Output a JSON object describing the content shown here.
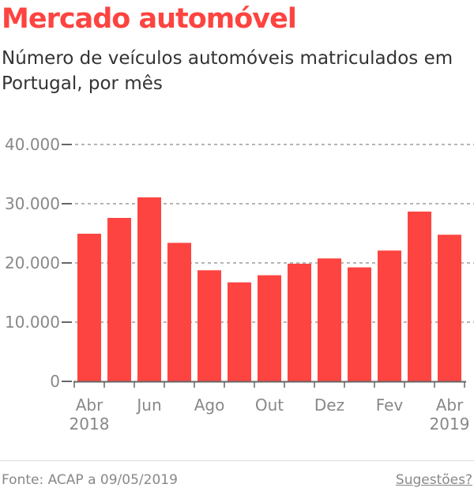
{
  "header": {
    "title": "Mercado automóvel",
    "subtitle": "Número de veículos automóveis matriculados em Portugal, por mês"
  },
  "chart_data": {
    "type": "bar",
    "categories": [
      "Abr 2018",
      "Mai 2018",
      "Jun 2018",
      "Jul 2018",
      "Ago 2018",
      "Set 2018",
      "Out 2018",
      "Nov 2018",
      "Dez 2018",
      "Jan 2019",
      "Fev 2019",
      "Mar 2019",
      "Abr 2019"
    ],
    "values": [
      24930,
      27600,
      31070,
      23390,
      18760,
      16720,
      17920,
      19870,
      20760,
      19250,
      22090,
      28670,
      24760
    ],
    "ylim": [
      0,
      40000
    ],
    "yticks": [
      0,
      10000,
      20000,
      30000,
      40000
    ],
    "ytick_labels": [
      "0",
      "10.000",
      "20.000",
      "30.000",
      "40.000"
    ],
    "xtick_labels": [
      {
        "index": 0,
        "lines": [
          "Abr",
          "2018"
        ]
      },
      {
        "index": 2,
        "lines": [
          "Jun"
        ]
      },
      {
        "index": 4,
        "lines": [
          "Ago"
        ]
      },
      {
        "index": 6,
        "lines": [
          "Out"
        ]
      },
      {
        "index": 8,
        "lines": [
          "Dez"
        ]
      },
      {
        "index": 10,
        "lines": [
          "Fev"
        ]
      },
      {
        "index": 12,
        "lines": [
          "Abr",
          "2019"
        ]
      }
    ],
    "grid": true,
    "bar_color": "#fd4440"
  },
  "footer": {
    "source": "Fonte: ACAP a 09/05/2019",
    "suggestions": "Sugestões?"
  }
}
